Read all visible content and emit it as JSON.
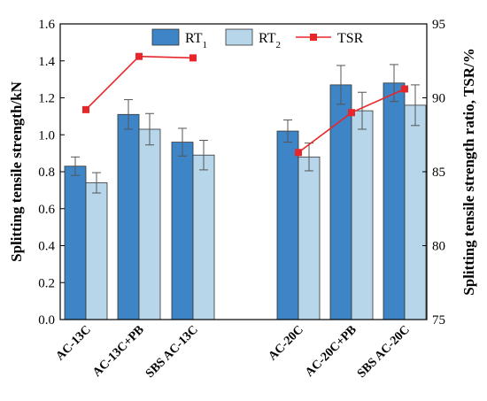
{
  "chart_data": {
    "type": "bar",
    "categories": [
      "AC-13C",
      "AC-13C+PB",
      "SBS AC-13C",
      "AC-20C",
      "AC-20C+PB",
      "SBS AC-20C"
    ],
    "groups": [
      [
        0,
        1,
        2
      ],
      [
        3,
        4,
        5
      ]
    ],
    "series": [
      {
        "name": "RT",
        "name_sub": "1",
        "color": "#3d85c6",
        "values": [
          0.83,
          1.11,
          0.96,
          1.02,
          1.27,
          1.28
        ],
        "errors": [
          0.05,
          0.08,
          0.075,
          0.06,
          0.105,
          0.1
        ]
      },
      {
        "name": "RT",
        "name_sub": "2",
        "color": "#b8d6ea",
        "values": [
          0.74,
          1.03,
          0.89,
          0.88,
          1.13,
          1.16
        ],
        "errors": [
          0.055,
          0.085,
          0.08,
          0.075,
          0.1,
          0.11
        ]
      }
    ],
    "line_series": {
      "name": "TSR",
      "color": "#e8262a",
      "axis": "right",
      "values": [
        89.2,
        92.8,
        92.7,
        86.3,
        89.0,
        90.6
      ],
      "segments": [
        [
          0,
          1,
          2
        ],
        [
          3,
          4,
          5
        ]
      ]
    },
    "ylabel": "Splitting tensile strength/kN",
    "ylabel_right": "Splitting tensile strength ratio, TSR/%",
    "ylim": [
      0,
      1.6
    ],
    "yticks": [
      "0.0",
      "0.2",
      "0.4",
      "0.6",
      "0.8",
      "1.0",
      "1.2",
      "1.4",
      "1.6"
    ],
    "ylim_right": [
      75,
      95
    ],
    "yticks_right": [
      "75",
      "80",
      "85",
      "90",
      "95"
    ],
    "grid": false,
    "legend_position": "top-center"
  }
}
